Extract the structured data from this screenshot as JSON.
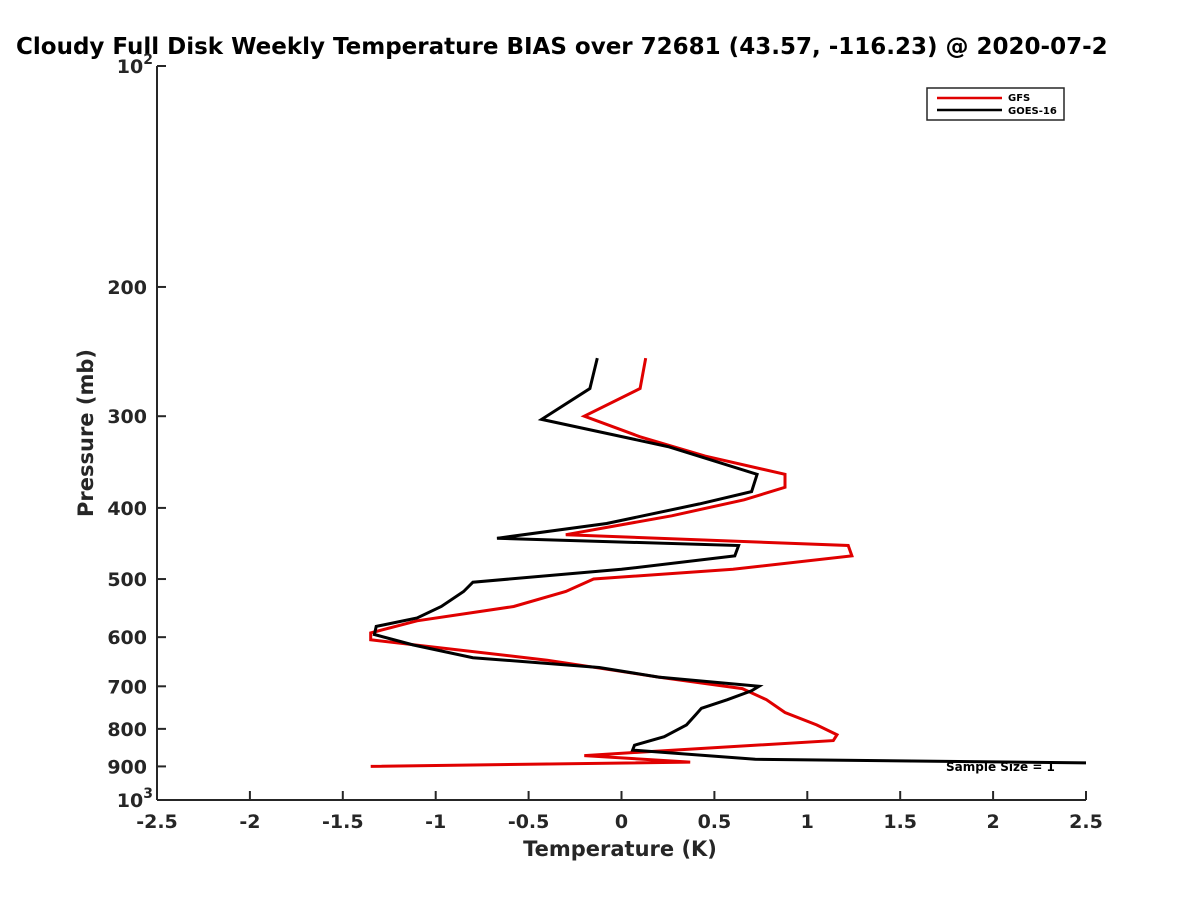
{
  "chart_data": {
    "type": "line",
    "title": "Cloudy Full Disk Weekly Temperature BIAS over 72681 (43.57, -116.23) @ 2020-07-2",
    "xlabel": "Temperature (K)",
    "ylabel": "Pressure (mb)",
    "xlim": [
      -2.5,
      2.5
    ],
    "ylim": [
      100,
      1000
    ],
    "y_scale": "log",
    "y_reversed": true,
    "x_ticks": [
      "-2.5",
      "-2",
      "-1.5",
      "-1",
      "-0.5",
      "0",
      "0.5",
      "1",
      "1.5",
      "2",
      "2.5"
    ],
    "y_ticks": [
      {
        "value": 100,
        "base": "10",
        "exp": "2"
      },
      {
        "value": 200,
        "label": "200"
      },
      {
        "value": 300,
        "label": "300"
      },
      {
        "value": 400,
        "label": "400"
      },
      {
        "value": 500,
        "label": "500"
      },
      {
        "value": 600,
        "label": "600"
      },
      {
        "value": 700,
        "label": "700"
      },
      {
        "value": 800,
        "label": "800"
      },
      {
        "value": 900,
        "label": "900"
      },
      {
        "value": 1000,
        "base": "10",
        "exp": "3"
      }
    ],
    "grid": false,
    "legend_position": "top-right",
    "annotation": "Sample Size = 1",
    "series": [
      {
        "name": "GFS",
        "color": "#e00000",
        "points": [
          [
            0.13,
            250
          ],
          [
            0.1,
            275
          ],
          [
            -0.2,
            300
          ],
          [
            0.1,
            320
          ],
          [
            0.45,
            340
          ],
          [
            0.88,
            360
          ],
          [
            0.88,
            375
          ],
          [
            0.66,
            390
          ],
          [
            0.27,
            410
          ],
          [
            -0.3,
            435
          ],
          [
            1.22,
            450
          ],
          [
            1.24,
            465
          ],
          [
            0.6,
            485
          ],
          [
            -0.15,
            500
          ],
          [
            -0.3,
            520
          ],
          [
            -0.58,
            545
          ],
          [
            -1.1,
            570
          ],
          [
            -1.35,
            592
          ],
          [
            -1.35,
            605
          ],
          [
            -0.4,
            645
          ],
          [
            0.2,
            680
          ],
          [
            0.65,
            705
          ],
          [
            0.78,
            730
          ],
          [
            0.88,
            760
          ],
          [
            1.05,
            790
          ],
          [
            1.16,
            815
          ],
          [
            1.14,
            830
          ],
          [
            0.45,
            850
          ],
          [
            -0.2,
            870
          ],
          [
            0.37,
            888
          ],
          [
            -1.35,
            900
          ]
        ]
      },
      {
        "name": "GOES-16",
        "color": "#000000",
        "points": [
          [
            -0.13,
            250
          ],
          [
            -0.17,
            275
          ],
          [
            -0.43,
            303
          ],
          [
            0.25,
            330
          ],
          [
            0.73,
            360
          ],
          [
            0.7,
            380
          ],
          [
            0.42,
            395
          ],
          [
            -0.08,
            420
          ],
          [
            -0.67,
            440
          ],
          [
            0.63,
            450
          ],
          [
            0.61,
            465
          ],
          [
            0.0,
            485
          ],
          [
            -0.8,
            505
          ],
          [
            -0.85,
            520
          ],
          [
            -0.97,
            545
          ],
          [
            -1.1,
            565
          ],
          [
            -1.32,
            580
          ],
          [
            -1.33,
            595
          ],
          [
            -1.12,
            615
          ],
          [
            -0.8,
            640
          ],
          [
            -0.12,
            660
          ],
          [
            0.2,
            680
          ],
          [
            0.74,
            700
          ],
          [
            0.7,
            710
          ],
          [
            0.57,
            730
          ],
          [
            0.43,
            750
          ],
          [
            0.4,
            765
          ],
          [
            0.35,
            790
          ],
          [
            0.23,
            820
          ],
          [
            0.07,
            842
          ],
          [
            0.06,
            855
          ],
          [
            0.72,
            880
          ],
          [
            2.5,
            890
          ]
        ]
      }
    ]
  }
}
